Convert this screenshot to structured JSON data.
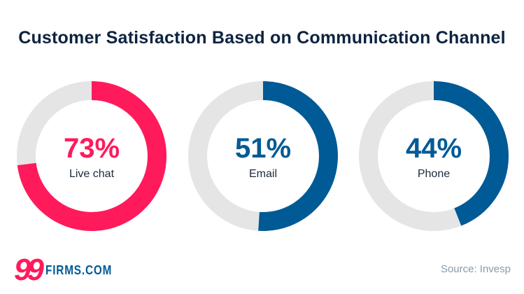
{
  "chart_data": {
    "type": "pie",
    "title": "Customer Satisfaction Based on Communication Channel",
    "categories": [
      "Live chat",
      "Email",
      "Phone"
    ],
    "values": [
      73,
      51,
      44
    ],
    "value_labels": [
      "73%",
      "51%",
      "44%"
    ],
    "colors": [
      "#ff1a5b",
      "#005a96",
      "#005a96"
    ],
    "remainder_color": "#e5e5e5",
    "style": "donut"
  },
  "logo": {
    "number": "99",
    "text": "FIRMS.COM"
  },
  "source": "Source: Invesp"
}
